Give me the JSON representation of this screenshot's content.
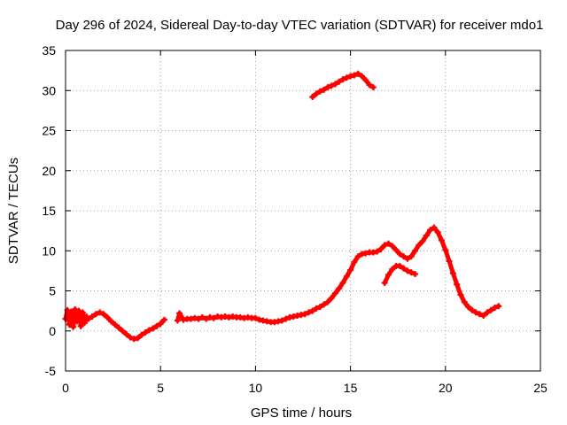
{
  "chart_data": {
    "type": "scatter",
    "title": "Day 296 of 2024, Sidereal Day-to-day VTEC variation (SDTVAR) for receiver mdo1",
    "xlabel": "GPS time / hours",
    "ylabel": "SDTVAR / TECUs",
    "xlim": [
      0,
      25
    ],
    "ylim": [
      -5,
      35
    ],
    "xticks": [
      0,
      5,
      10,
      15,
      20,
      25
    ],
    "yticks": [
      -5,
      0,
      5,
      10,
      15,
      20,
      25,
      30,
      35
    ],
    "grid": true,
    "legend": "none",
    "series": [
      {
        "name": "SDTVAR",
        "color": "#ff0000",
        "segments": [
          [
            [
              0.0,
              1.5
            ],
            [
              0.1,
              2.6
            ],
            [
              0.2,
              0.8
            ],
            [
              0.3,
              2.4
            ],
            [
              0.4,
              0.5
            ],
            [
              0.5,
              2.7
            ],
            [
              0.6,
              1.2
            ],
            [
              0.7,
              2.5
            ],
            [
              0.8,
              0.6
            ],
            [
              0.9,
              2.3
            ],
            [
              1.0,
              1.0
            ],
            [
              1.1,
              1.8
            ],
            [
              1.2,
              1.5
            ],
            [
              1.4,
              1.8
            ],
            [
              1.6,
              2.1
            ],
            [
              1.8,
              2.3
            ],
            [
              2.0,
              2.1
            ],
            [
              2.2,
              1.7
            ],
            [
              2.4,
              1.2
            ],
            [
              2.6,
              0.8
            ],
            [
              2.8,
              0.4
            ],
            [
              3.0,
              0.0
            ],
            [
              3.2,
              -0.4
            ],
            [
              3.4,
              -0.8
            ],
            [
              3.6,
              -1.0
            ],
            [
              3.8,
              -0.9
            ],
            [
              4.0,
              -0.5
            ],
            [
              4.2,
              -0.2
            ],
            [
              4.4,
              0.1
            ],
            [
              4.6,
              0.3
            ],
            [
              4.8,
              0.6
            ],
            [
              5.0,
              0.9
            ],
            [
              5.2,
              1.4
            ]
          ],
          [
            [
              5.9,
              1.3
            ],
            [
              6.0,
              2.2
            ],
            [
              6.2,
              1.4
            ],
            [
              6.4,
              1.5
            ],
            [
              6.6,
              1.5
            ],
            [
              6.8,
              1.6
            ],
            [
              7.0,
              1.5
            ],
            [
              7.2,
              1.7
            ],
            [
              7.4,
              1.5
            ],
            [
              7.6,
              1.7
            ],
            [
              7.8,
              1.6
            ],
            [
              8.0,
              1.8
            ],
            [
              8.2,
              1.7
            ],
            [
              8.4,
              1.8
            ],
            [
              8.6,
              1.7
            ],
            [
              8.8,
              1.8
            ],
            [
              9.0,
              1.7
            ],
            [
              9.2,
              1.7
            ],
            [
              9.4,
              1.6
            ],
            [
              9.6,
              1.7
            ],
            [
              9.8,
              1.6
            ],
            [
              10.0,
              1.6
            ],
            [
              10.2,
              1.4
            ],
            [
              10.4,
              1.3
            ],
            [
              10.6,
              1.2
            ],
            [
              10.8,
              1.1
            ],
            [
              11.0,
              1.1
            ],
            [
              11.2,
              1.2
            ],
            [
              11.4,
              1.3
            ],
            [
              11.6,
              1.5
            ],
            [
              11.8,
              1.7
            ],
            [
              12.0,
              1.8
            ],
            [
              12.2,
              1.9
            ],
            [
              12.4,
              2.0
            ],
            [
              12.6,
              2.1
            ],
            [
              12.8,
              2.3
            ],
            [
              13.0,
              2.5
            ],
            [
              13.2,
              2.8
            ],
            [
              13.4,
              3.0
            ],
            [
              13.6,
              3.3
            ],
            [
              13.8,
              3.6
            ],
            [
              14.0,
              4.1
            ],
            [
              14.2,
              4.7
            ],
            [
              14.4,
              5.3
            ],
            [
              14.6,
              6.0
            ],
            [
              14.8,
              6.8
            ],
            [
              15.0,
              7.6
            ],
            [
              15.2,
              8.6
            ],
            [
              15.4,
              9.3
            ],
            [
              15.6,
              9.6
            ],
            [
              15.8,
              9.7
            ],
            [
              16.0,
              9.8
            ],
            [
              16.2,
              9.8
            ],
            [
              16.4,
              9.9
            ],
            [
              16.6,
              10.2
            ],
            [
              16.8,
              10.7
            ],
            [
              17.0,
              10.9
            ],
            [
              17.2,
              10.6
            ],
            [
              17.4,
              10.1
            ],
            [
              17.6,
              9.6
            ],
            [
              17.8,
              9.3
            ],
            [
              18.0,
              9.0
            ],
            [
              18.2,
              9.3
            ],
            [
              18.4,
              10.0
            ],
            [
              18.6,
              10.7
            ],
            [
              18.8,
              11.2
            ],
            [
              19.0,
              11.9
            ],
            [
              19.2,
              12.6
            ],
            [
              19.4,
              12.9
            ],
            [
              19.6,
              12.3
            ],
            [
              19.8,
              11.3
            ],
            [
              20.0,
              10.1
            ],
            [
              20.2,
              8.7
            ],
            [
              20.4,
              7.2
            ],
            [
              20.6,
              5.8
            ],
            [
              20.8,
              4.5
            ],
            [
              21.0,
              3.6
            ],
            [
              21.2,
              3.0
            ],
            [
              21.4,
              2.6
            ],
            [
              21.6,
              2.3
            ],
            [
              21.8,
              2.1
            ],
            [
              22.0,
              1.9
            ],
            [
              22.2,
              2.3
            ],
            [
              22.4,
              2.6
            ],
            [
              22.6,
              2.9
            ],
            [
              22.8,
              3.1
            ]
          ],
          [
            [
              16.8,
              6.0
            ],
            [
              17.0,
              7.0
            ],
            [
              17.2,
              7.7
            ],
            [
              17.4,
              8.1
            ],
            [
              17.6,
              8.1
            ],
            [
              17.8,
              7.8
            ],
            [
              18.0,
              7.5
            ],
            [
              18.2,
              7.3
            ],
            [
              18.4,
              7.1
            ]
          ],
          [
            [
              13.0,
              29.2
            ],
            [
              13.2,
              29.6
            ],
            [
              13.4,
              29.9
            ],
            [
              13.6,
              30.1
            ],
            [
              13.8,
              30.4
            ],
            [
              14.0,
              30.6
            ],
            [
              14.2,
              30.8
            ],
            [
              14.4,
              31.1
            ],
            [
              14.6,
              31.4
            ],
            [
              14.8,
              31.6
            ],
            [
              15.0,
              31.8
            ],
            [
              15.2,
              31.9
            ],
            [
              15.4,
              32.1
            ],
            [
              15.6,
              31.8
            ],
            [
              15.8,
              31.3
            ],
            [
              16.0,
              30.7
            ],
            [
              16.2,
              30.4
            ]
          ]
        ]
      }
    ]
  }
}
